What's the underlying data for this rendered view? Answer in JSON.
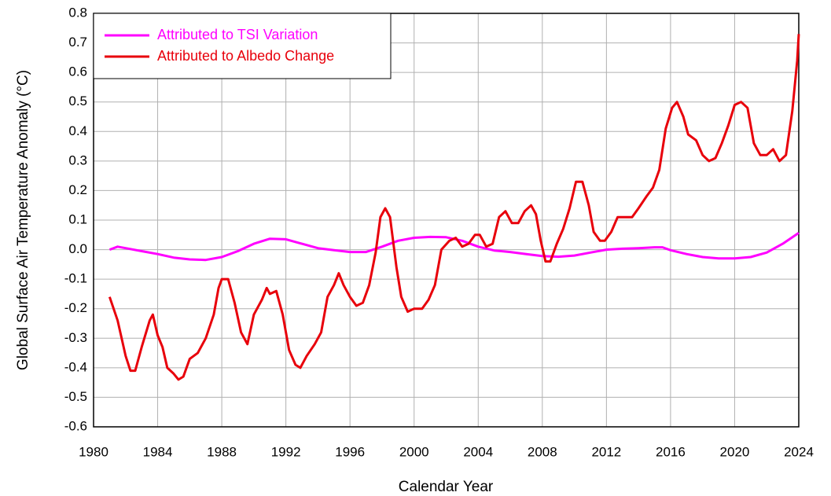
{
  "chart_data": {
    "type": "line",
    "x_label": "Calendar Year",
    "y_label": "Global Surface Air Temperature Anomaly (°C)",
    "xlim": [
      1980,
      2024
    ],
    "xticks": [
      1980,
      1984,
      1988,
      1992,
      1996,
      2000,
      2004,
      2008,
      2012,
      2016,
      2020,
      2024
    ],
    "ylim": [
      -0.6,
      0.8
    ],
    "yticks": [
      -0.6,
      -0.5,
      -0.4,
      -0.3,
      -0.2,
      -0.1,
      {
        "value": 0,
        "label": "0.0"
      },
      0.1,
      0.2,
      0.3,
      0.4,
      0.5,
      0.6,
      0.7,
      0.8
    ],
    "grid": true,
    "legend": "upper left",
    "series": [
      {
        "name": "Attributed to TSI Variation",
        "color": "#ff00ff",
        "x": [
          1981,
          1981.5,
          1982,
          1983,
          1984,
          1985,
          1986,
          1987,
          1988,
          1989,
          1990,
          1991,
          1992,
          1993,
          1994,
          1995,
          1996,
          1997,
          1998,
          1999,
          2000,
          2001,
          2002,
          2003,
          2004,
          2005,
          2006,
          2007,
          2008,
          2009,
          2010,
          2011,
          2012,
          2013,
          2014,
          2015,
          2015.5,
          2016,
          2017,
          2018,
          2019,
          2020,
          2021,
          2022,
          2023,
          2024
        ],
        "values": [
          0.0,
          0.01,
          0.005,
          -0.005,
          -0.015,
          -0.027,
          -0.033,
          -0.035,
          -0.025,
          -0.005,
          0.02,
          0.037,
          0.035,
          0.02,
          0.005,
          -0.002,
          -0.008,
          -0.008,
          0.01,
          0.03,
          0.04,
          0.043,
          0.042,
          0.03,
          0.01,
          -0.003,
          -0.008,
          -0.015,
          -0.022,
          -0.024,
          -0.02,
          -0.01,
          0.0,
          0.003,
          0.005,
          0.008,
          0.008,
          -0.002,
          -0.015,
          -0.025,
          -0.03,
          -0.03,
          -0.025,
          -0.01,
          0.02,
          0.057
        ]
      },
      {
        "name": "Attributed to Albedo Change",
        "color": "#e8000b",
        "x": [
          1981.0,
          1981.5,
          1982.0,
          1982.3,
          1982.6,
          1983.0,
          1983.5,
          1983.7,
          1984.0,
          1984.3,
          1984.6,
          1985.0,
          1985.3,
          1985.6,
          1986.0,
          1986.5,
          1987.0,
          1987.5,
          1987.8,
          1988.0,
          1988.4,
          1988.8,
          1989.2,
          1989.6,
          1990.0,
          1990.5,
          1990.8,
          1991.0,
          1991.4,
          1991.8,
          1992.2,
          1992.6,
          1992.9,
          1993.3,
          1993.8,
          1994.2,
          1994.6,
          1995.0,
          1995.3,
          1995.6,
          1996.0,
          1996.4,
          1996.8,
          1997.2,
          1997.6,
          1997.9,
          1998.2,
          1998.5,
          1998.9,
          1999.2,
          1999.6,
          2000.0,
          2000.5,
          2000.9,
          2001.3,
          2001.7,
          2002.2,
          2002.6,
          2003.0,
          2003.4,
          2003.8,
          2004.1,
          2004.5,
          2004.9,
          2005.3,
          2005.7,
          2006.1,
          2006.5,
          2006.9,
          2007.3,
          2007.6,
          2007.9,
          2008.2,
          2008.5,
          2008.9,
          2009.3,
          2009.7,
          2010.1,
          2010.5,
          2010.9,
          2011.2,
          2011.6,
          2011.9,
          2012.3,
          2012.7,
          2013.1,
          2013.6,
          2014.0,
          2014.5,
          2014.9,
          2015.3,
          2015.7,
          2016.1,
          2016.4,
          2016.8,
          2017.1,
          2017.6,
          2018.0,
          2018.4,
          2018.8,
          2019.2,
          2019.6,
          2020.0,
          2020.4,
          2020.8,
          2021.2,
          2021.6,
          2022.0,
          2022.4,
          2022.8,
          2023.2,
          2023.6,
          2023.9,
          2024.0
        ],
        "values": [
          -0.16,
          -0.24,
          -0.36,
          -0.41,
          -0.41,
          -0.33,
          -0.24,
          -0.22,
          -0.29,
          -0.33,
          -0.4,
          -0.42,
          -0.44,
          -0.43,
          -0.37,
          -0.35,
          -0.3,
          -0.22,
          -0.13,
          -0.1,
          -0.1,
          -0.18,
          -0.28,
          -0.32,
          -0.22,
          -0.17,
          -0.13,
          -0.15,
          -0.14,
          -0.22,
          -0.34,
          -0.39,
          -0.4,
          -0.36,
          -0.32,
          -0.28,
          -0.16,
          -0.12,
          -0.08,
          -0.12,
          -0.16,
          -0.19,
          -0.18,
          -0.12,
          -0.01,
          0.11,
          0.14,
          0.11,
          -0.06,
          -0.16,
          -0.21,
          -0.2,
          -0.2,
          -0.17,
          -0.12,
          0.0,
          0.03,
          0.04,
          0.01,
          0.02,
          0.05,
          0.05,
          0.01,
          0.02,
          0.11,
          0.13,
          0.09,
          0.09,
          0.13,
          0.15,
          0.12,
          0.03,
          -0.04,
          -0.04,
          0.02,
          0.07,
          0.14,
          0.23,
          0.23,
          0.15,
          0.06,
          0.03,
          0.03,
          0.06,
          0.11,
          0.11,
          0.11,
          0.14,
          0.18,
          0.21,
          0.27,
          0.41,
          0.48,
          0.5,
          0.45,
          0.39,
          0.37,
          0.32,
          0.3,
          0.31,
          0.36,
          0.42,
          0.49,
          0.5,
          0.48,
          0.36,
          0.32,
          0.32,
          0.34,
          0.3,
          0.32,
          0.47,
          0.64,
          0.73
        ]
      }
    ]
  }
}
